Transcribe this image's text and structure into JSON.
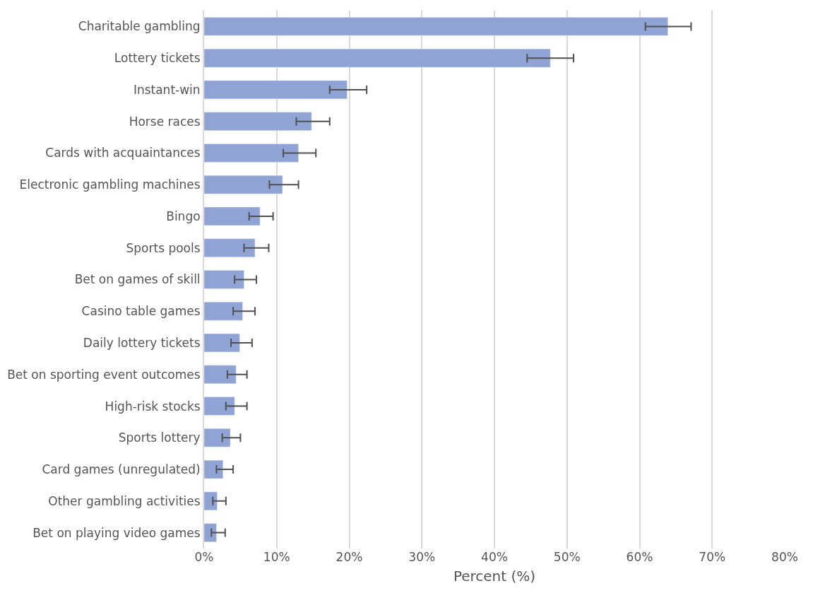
{
  "chart_data": {
    "type": "bar",
    "orientation": "horizontal",
    "xlabel": "Percent (%)",
    "categories": [
      "Charitable gambling",
      "Lottery tickets",
      "Instant-win",
      "Horse races",
      "Cards with acquaintances",
      "Electronic gambling machines",
      "Bingo",
      "Sports pools",
      "Bet on games of skill",
      "Casino table games",
      "Daily lottery tickets",
      "Bet on sporting event outcomes",
      "High-risk stocks",
      "Sports lottery",
      "Card games (unregulated)",
      "Other gambling activities",
      "Bet on playing video games"
    ],
    "values": [
      63.9,
      47.7,
      19.7,
      14.8,
      13.0,
      10.8,
      7.7,
      7.0,
      5.5,
      5.3,
      4.9,
      4.4,
      4.2,
      3.6,
      2.6,
      1.8,
      1.7
    ],
    "errors": [
      [
        60.8,
        67.1
      ],
      [
        44.5,
        50.9
      ],
      [
        17.3,
        22.4
      ],
      [
        12.7,
        17.3
      ],
      [
        10.9,
        15.4
      ],
      [
        9.0,
        13.0
      ],
      [
        6.2,
        9.5
      ],
      [
        5.5,
        8.9
      ],
      [
        4.2,
        7.2
      ],
      [
        4.0,
        7.0
      ],
      [
        3.7,
        6.6
      ],
      [
        3.2,
        5.9
      ],
      [
        3.0,
        5.9
      ],
      [
        2.5,
        5.0
      ],
      [
        1.7,
        4.0
      ],
      [
        1.2,
        3.0
      ],
      [
        1.0,
        2.9
      ]
    ],
    "color": "#8fa3d4",
    "xlim": [
      0,
      80
    ],
    "xticks": [
      {
        "value": 0,
        "label": "0%"
      },
      {
        "value": 10,
        "label": "10%"
      },
      {
        "value": 20,
        "label": "20%"
      },
      {
        "value": 30,
        "label": "30%"
      },
      {
        "value": 40,
        "label": "40%"
      },
      {
        "value": 50,
        "label": "50%"
      },
      {
        "value": 60,
        "label": "60%"
      },
      {
        "value": 70,
        "label": "70%"
      },
      {
        "value": 80,
        "label": "80%"
      }
    ],
    "grid": "x"
  }
}
